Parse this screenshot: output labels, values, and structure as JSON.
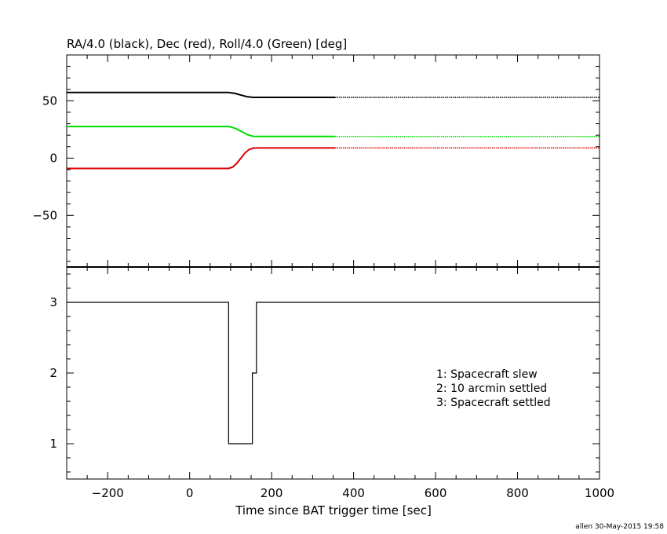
{
  "chart_data": [
    {
      "type": "line",
      "title": "RA/4.0 (black), Dec (red), Roll/4.0 (Green) [deg]",
      "xlim": [
        -300,
        1000
      ],
      "ylim": [
        -95,
        90
      ],
      "yticks": [
        -50,
        0,
        50
      ],
      "grid": false,
      "series": [
        {
          "color": "#000000",
          "dotted_after": 355,
          "points": [
            [
              -300,
              57.3
            ],
            [
              95,
              57.3
            ],
            [
              110,
              56.5
            ],
            [
              125,
              55.0
            ],
            [
              140,
              53.6
            ],
            [
              155,
              53.0
            ],
            [
              1000,
              53.0
            ]
          ]
        },
        {
          "color": "#00dd00",
          "dotted_after": 355,
          "points": [
            [
              -300,
              27.6
            ],
            [
              95,
              27.6
            ],
            [
              110,
              26.2
            ],
            [
              125,
              23.5
            ],
            [
              140,
              20.6
            ],
            [
              155,
              19.0
            ],
            [
              165,
              18.9
            ],
            [
              1000,
              18.9
            ]
          ]
        },
        {
          "color": "#dd0000",
          "dotted_after": 355,
          "points": [
            [
              -300,
              -9.0
            ],
            [
              95,
              -9.0
            ],
            [
              105,
              -7.8
            ],
            [
              115,
              -4.5
            ],
            [
              125,
              0.0
            ],
            [
              135,
              4.5
            ],
            [
              145,
              7.5
            ],
            [
              155,
              8.7
            ],
            [
              165,
              8.9
            ],
            [
              1000,
              8.9
            ]
          ]
        }
      ]
    },
    {
      "type": "line",
      "xlim": [
        -300,
        1000
      ],
      "ylim": [
        0.5,
        3.5
      ],
      "yticks": [
        1,
        2,
        3
      ],
      "xticks": [
        -200,
        0,
        200,
        400,
        600,
        800,
        1000
      ],
      "xlabel": "Time since BAT trigger time [sec]",
      "series": [
        {
          "color": "#000000",
          "step": true,
          "points": [
            [
              -300,
              3
            ],
            [
              95,
              3
            ],
            [
              95,
              1
            ],
            [
              153,
              1
            ],
            [
              153,
              2
            ],
            [
              163,
              2
            ],
            [
              163,
              3
            ],
            [
              1000,
              3
            ]
          ]
        }
      ],
      "legend": {
        "position": "right",
        "entries": [
          "1: Spacecraft slew",
          "2: 10 arcmin settled",
          "3: Spacecraft settled"
        ]
      }
    }
  ],
  "credit": "allen 30-May-2015 19:58"
}
